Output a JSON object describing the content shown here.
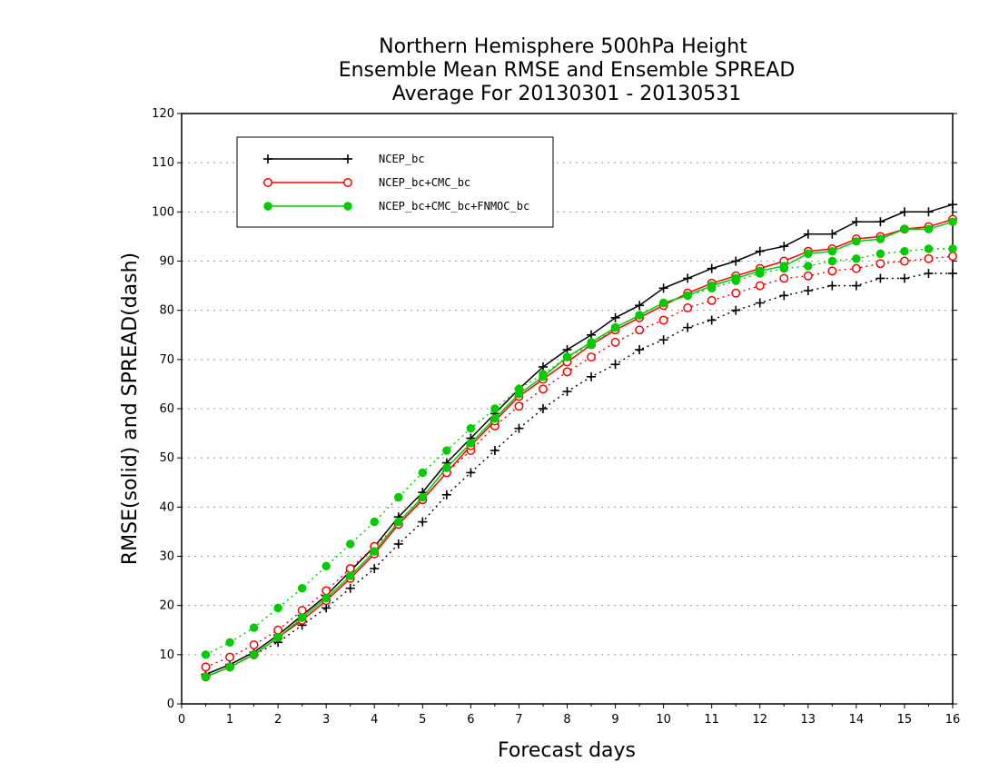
{
  "chart_data": {
    "type": "line",
    "title": "Northern Hemisphere 500hPa Height",
    "subtitle": [
      "Ensemble Mean RMSE and Ensemble SPREAD",
      "Average For 20130301 - 20130531"
    ],
    "xlabel": "Forecast days",
    "ylabel": "RMSE(solid) and SPREAD(dash)",
    "xlim": [
      0,
      16
    ],
    "ylim": [
      0,
      120
    ],
    "xticks": [
      0,
      1,
      2,
      3,
      4,
      5,
      6,
      7,
      8,
      9,
      10,
      11,
      12,
      13,
      14,
      15,
      16
    ],
    "yticks": [
      0,
      10,
      20,
      30,
      40,
      50,
      60,
      70,
      80,
      90,
      100,
      110,
      120
    ],
    "grid": "horizontal dotted",
    "legend_position": "top-left",
    "x": [
      0.5,
      1,
      1.5,
      2,
      2.5,
      3,
      3.5,
      4,
      4.5,
      5,
      5.5,
      6,
      6.5,
      7,
      7.5,
      8,
      8.5,
      9,
      9.5,
      10,
      10.5,
      11,
      11.5,
      12,
      12.5,
      13,
      13.5,
      14,
      14.5,
      15,
      15.5,
      16
    ],
    "series": [
      {
        "name": "NCEP_bc",
        "color": "#000000",
        "marker": "plus",
        "rmse": [
          6,
          8,
          10.5,
          14,
          18,
          22,
          27,
          32,
          38,
          43,
          49,
          54,
          59,
          64,
          68.5,
          72,
          75,
          78.5,
          81,
          84.5,
          86.5,
          88.5,
          90,
          92,
          93,
          95.5,
          95.5,
          98,
          98,
          100,
          100,
          101.5
        ],
        "spread": [
          5.5,
          7.5,
          10,
          12.5,
          16,
          19.5,
          23.5,
          27.5,
          32.5,
          37,
          42.5,
          47,
          51.5,
          56,
          60,
          63.5,
          66.5,
          69,
          72,
          74,
          76.5,
          78,
          80,
          81.5,
          83,
          84,
          85,
          85,
          86.5,
          86.5,
          87.5,
          87.5
        ]
      },
      {
        "name": "NCEP_bc+CMC_bc",
        "color": "#ff0000",
        "marker": "open-circle",
        "rmse": [
          5.5,
          7.5,
          10,
          13.5,
          17,
          21,
          25.5,
          30.5,
          36.5,
          41.5,
          47,
          52.5,
          57.5,
          62.5,
          66,
          69.5,
          73,
          76,
          78.5,
          81,
          83.5,
          85.5,
          87,
          88.5,
          90,
          92,
          92.5,
          94.5,
          95,
          96.5,
          97,
          98.5
        ],
        "spread": [
          7.5,
          9.5,
          12,
          15,
          19,
          23,
          27.5,
          32,
          36.5,
          41.5,
          47,
          51.5,
          56.5,
          60.5,
          64,
          67.5,
          70.5,
          73.5,
          76,
          78,
          80.5,
          82,
          83.5,
          85,
          86.5,
          87,
          88,
          88.5,
          89.5,
          90,
          90.5,
          91
        ]
      },
      {
        "name": "NCEP_bc+CMC_bc+FNMOC_bc",
        "color": "#00cc00",
        "marker": "filled-circle",
        "rmse": [
          5.5,
          7.5,
          10,
          13.5,
          17.5,
          21.5,
          26,
          31,
          37,
          42,
          48,
          53,
          58,
          63,
          66.5,
          70.5,
          73.5,
          76.5,
          79,
          81.5,
          83,
          85,
          86.5,
          88,
          89,
          91.5,
          92,
          94,
          94.5,
          96.5,
          96.5,
          98
        ],
        "spread": [
          10,
          12.5,
          15.5,
          19.5,
          23.5,
          28,
          32.5,
          37,
          42,
          47,
          51.5,
          56,
          60,
          64,
          67,
          70.5,
          73,
          76.5,
          79,
          81.5,
          83,
          84.5,
          86,
          87.5,
          88.5,
          89,
          90,
          90.5,
          91.5,
          92,
          92.5,
          92.5
        ]
      }
    ]
  }
}
